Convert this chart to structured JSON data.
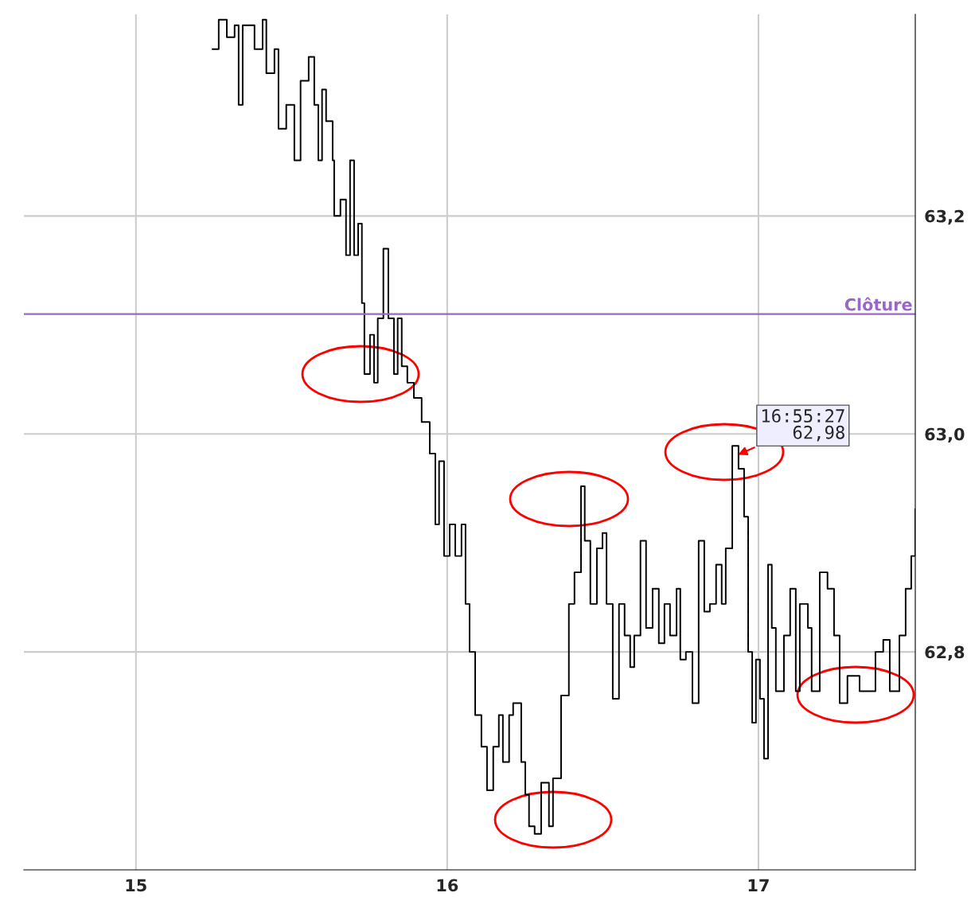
{
  "chart_data": {
    "type": "step",
    "x": [
      15.246,
      15.266,
      15.292,
      15.317,
      15.33,
      15.343,
      15.381,
      15.407,
      15.419,
      15.445,
      15.458,
      15.483,
      15.509,
      15.529,
      15.555,
      15.573,
      15.586,
      15.598,
      15.611,
      15.632,
      15.637,
      15.657,
      15.675,
      15.688,
      15.701,
      15.714,
      15.726,
      15.734,
      15.752,
      15.765,
      15.777,
      15.795,
      15.811,
      15.829,
      15.841,
      15.854,
      15.872,
      15.893,
      15.918,
      15.944,
      15.962,
      15.974,
      15.99,
      16.008,
      16.026,
      16.046,
      16.059,
      16.072,
      16.09,
      16.11,
      16.128,
      16.148,
      16.166,
      16.179,
      16.199,
      16.212,
      16.238,
      16.251,
      16.263,
      16.281,
      16.302,
      16.327,
      16.34,
      16.366,
      16.391,
      16.409,
      16.43,
      16.442,
      16.46,
      16.481,
      16.499,
      16.512,
      16.532,
      16.552,
      16.57,
      16.588,
      16.601,
      16.621,
      16.639,
      16.66,
      16.68,
      16.698,
      16.716,
      16.737,
      16.749,
      16.767,
      16.788,
      16.808,
      16.826,
      16.844,
      16.864,
      16.882,
      16.895,
      16.916,
      16.936,
      16.954,
      16.967,
      16.98,
      16.992,
      17.005,
      17.018,
      17.031,
      17.043,
      17.056,
      17.082,
      17.102,
      17.12,
      17.133,
      17.159,
      17.171,
      17.197,
      17.222,
      17.243,
      17.261,
      17.286,
      17.325,
      17.376,
      17.401,
      17.422,
      17.453,
      17.473,
      17.491,
      17.504
    ],
    "series": [
      {
        "color": "#000000",
        "values": [
          63.353,
          63.38,
          63.364,
          63.375,
          63.302,
          63.375,
          63.353,
          63.38,
          63.331,
          63.353,
          63.28,
          63.302,
          63.251,
          63.324,
          63.346,
          63.302,
          63.251,
          63.316,
          63.287,
          63.251,
          63.2,
          63.215,
          63.164,
          63.251,
          63.164,
          63.193,
          63.12,
          63.055,
          63.091,
          63.047,
          63.106,
          63.17,
          63.106,
          63.055,
          63.106,
          63.062,
          63.047,
          63.033,
          63.011,
          62.982,
          62.917,
          62.975,
          62.888,
          62.917,
          62.888,
          62.917,
          62.844,
          62.8,
          62.742,
          62.713,
          62.673,
          62.713,
          62.742,
          62.699,
          62.742,
          62.753,
          62.699,
          62.669,
          62.64,
          62.633,
          62.68,
          62.64,
          62.684,
          62.76,
          62.844,
          62.873,
          62.952,
          62.902,
          62.844,
          62.895,
          62.909,
          62.844,
          62.757,
          62.844,
          62.815,
          62.786,
          62.815,
          62.902,
          62.822,
          62.858,
          62.808,
          62.844,
          62.815,
          62.858,
          62.793,
          62.8,
          62.753,
          62.902,
          62.837,
          62.844,
          62.88,
          62.844,
          62.895,
          62.989,
          62.968,
          62.924,
          62.8,
          62.735,
          62.793,
          62.757,
          62.702,
          62.88,
          62.822,
          62.764,
          62.815,
          62.858,
          62.764,
          62.844,
          62.822,
          62.764,
          62.873,
          62.858,
          62.815,
          62.753,
          62.778,
          62.764,
          62.8,
          62.811,
          62.764,
          62.815,
          62.858,
          62.888,
          62.931
        ]
      }
    ],
    "xlim": [
      14.64,
      17.504
    ],
    "ylim": [
      62.6,
      63.385
    ],
    "xticks": [
      15,
      16,
      17
    ],
    "yticks": [
      {
        "value": 62.8,
        "label": "62,8"
      },
      {
        "value": 63.0,
        "label": "63,0"
      },
      {
        "value": 63.2,
        "label": "63,2"
      }
    ],
    "ref_lines": [
      {
        "axis": "y",
        "value": 63.11,
        "label": "Clôture",
        "color": "#9966cc"
      }
    ],
    "annotations": [
      {
        "text": "16:55:27\n62,98",
        "x": 16.928,
        "y": 62.98
      }
    ],
    "grid": true
  }
}
